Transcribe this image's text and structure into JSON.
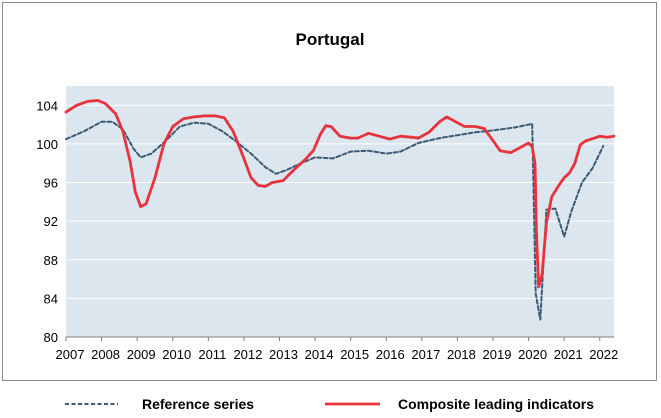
{
  "chart_data": {
    "type": "line",
    "title": "Portugal",
    "xlabel": "",
    "ylabel": "",
    "xlim": [
      2007,
      2022.4
    ],
    "ylim": [
      80,
      106
    ],
    "x_ticks": [
      "2007",
      "2008",
      "2009",
      "2010",
      "2011",
      "2012",
      "2013",
      "2014",
      "2015",
      "2016",
      "2017",
      "2018",
      "2019",
      "2020",
      "2021",
      "2022"
    ],
    "y_ticks": [
      80,
      84,
      88,
      92,
      96,
      100,
      104
    ],
    "grid": "horizontal",
    "legend_position": "bottom",
    "series": [
      {
        "name": "Reference series",
        "style": "dashed",
        "color": "#3d5a75",
        "points": [
          [
            2007.0,
            100.5
          ],
          [
            2007.5,
            101.3
          ],
          [
            2008.0,
            102.3
          ],
          [
            2008.3,
            102.3
          ],
          [
            2008.6,
            101.5
          ],
          [
            2008.9,
            99.5
          ],
          [
            2009.1,
            98.6
          ],
          [
            2009.4,
            99.0
          ],
          [
            2009.8,
            100.3
          ],
          [
            2010.2,
            101.8
          ],
          [
            2010.6,
            102.2
          ],
          [
            2011.0,
            102.1
          ],
          [
            2011.4,
            101.3
          ],
          [
            2011.8,
            100.2
          ],
          [
            2012.2,
            99.0
          ],
          [
            2012.6,
            97.6
          ],
          [
            2012.9,
            96.9
          ],
          [
            2013.2,
            97.3
          ],
          [
            2013.6,
            98.0
          ],
          [
            2014.0,
            98.6
          ],
          [
            2014.5,
            98.5
          ],
          [
            2015.0,
            99.2
          ],
          [
            2015.5,
            99.3
          ],
          [
            2016.0,
            99.0
          ],
          [
            2016.4,
            99.2
          ],
          [
            2016.9,
            100.1
          ],
          [
            2017.5,
            100.6
          ],
          [
            2018.0,
            100.9
          ],
          [
            2018.5,
            101.2
          ],
          [
            2019.0,
            101.4
          ],
          [
            2019.6,
            101.7
          ],
          [
            2020.0,
            102.0
          ],
          [
            2020.1,
            102.1
          ],
          [
            2020.2,
            84.5
          ],
          [
            2020.33,
            81.8
          ],
          [
            2020.5,
            93.2
          ],
          [
            2020.75,
            93.3
          ],
          [
            2021.0,
            90.4
          ],
          [
            2021.2,
            93.0
          ],
          [
            2021.5,
            96.0
          ],
          [
            2021.8,
            97.5
          ],
          [
            2022.1,
            99.8
          ]
        ]
      },
      {
        "name": "Composite leading indicators",
        "style": "solid",
        "color": "#e8323c",
        "points": [
          [
            2007.0,
            103.3
          ],
          [
            2007.3,
            104.0
          ],
          [
            2007.6,
            104.4
          ],
          [
            2007.9,
            104.5
          ],
          [
            2008.1,
            104.2
          ],
          [
            2008.4,
            103.1
          ],
          [
            2008.6,
            101.3
          ],
          [
            2008.8,
            98.2
          ],
          [
            2008.95,
            95.0
          ],
          [
            2009.1,
            93.5
          ],
          [
            2009.25,
            93.8
          ],
          [
            2009.5,
            96.5
          ],
          [
            2009.75,
            100.0
          ],
          [
            2010.0,
            101.8
          ],
          [
            2010.3,
            102.6
          ],
          [
            2010.6,
            102.8
          ],
          [
            2010.9,
            102.9
          ],
          [
            2011.2,
            102.9
          ],
          [
            2011.45,
            102.7
          ],
          [
            2011.7,
            101.3
          ],
          [
            2012.0,
            98.5
          ],
          [
            2012.2,
            96.5
          ],
          [
            2012.4,
            95.7
          ],
          [
            2012.6,
            95.6
          ],
          [
            2012.8,
            96.0
          ],
          [
            2013.1,
            96.2
          ],
          [
            2013.4,
            97.3
          ],
          [
            2013.7,
            98.3
          ],
          [
            2013.95,
            99.3
          ],
          [
            2014.15,
            101.0
          ],
          [
            2014.3,
            101.9
          ],
          [
            2014.45,
            101.8
          ],
          [
            2014.7,
            100.8
          ],
          [
            2015.0,
            100.6
          ],
          [
            2015.2,
            100.6
          ],
          [
            2015.5,
            101.1
          ],
          [
            2015.8,
            100.8
          ],
          [
            2016.1,
            100.5
          ],
          [
            2016.4,
            100.8
          ],
          [
            2016.7,
            100.7
          ],
          [
            2016.9,
            100.6
          ],
          [
            2017.2,
            101.2
          ],
          [
            2017.5,
            102.3
          ],
          [
            2017.7,
            102.8
          ],
          [
            2017.95,
            102.3
          ],
          [
            2018.2,
            101.8
          ],
          [
            2018.5,
            101.8
          ],
          [
            2018.75,
            101.6
          ],
          [
            2018.95,
            100.6
          ],
          [
            2019.2,
            99.3
          ],
          [
            2019.5,
            99.1
          ],
          [
            2019.75,
            99.6
          ],
          [
            2020.0,
            100.1
          ],
          [
            2020.1,
            99.7
          ],
          [
            2020.18,
            98.0
          ],
          [
            2020.22,
            91.0
          ],
          [
            2020.28,
            85.2
          ],
          [
            2020.38,
            86.5
          ],
          [
            2020.5,
            91.8
          ],
          [
            2020.65,
            94.5
          ],
          [
            2020.85,
            95.7
          ],
          [
            2021.0,
            96.5
          ],
          [
            2021.15,
            97.0
          ],
          [
            2021.3,
            98.0
          ],
          [
            2021.45,
            99.9
          ],
          [
            2021.6,
            100.3
          ],
          [
            2021.85,
            100.6
          ],
          [
            2022.0,
            100.8
          ],
          [
            2022.2,
            100.7
          ],
          [
            2022.4,
            100.8
          ]
        ]
      }
    ]
  }
}
